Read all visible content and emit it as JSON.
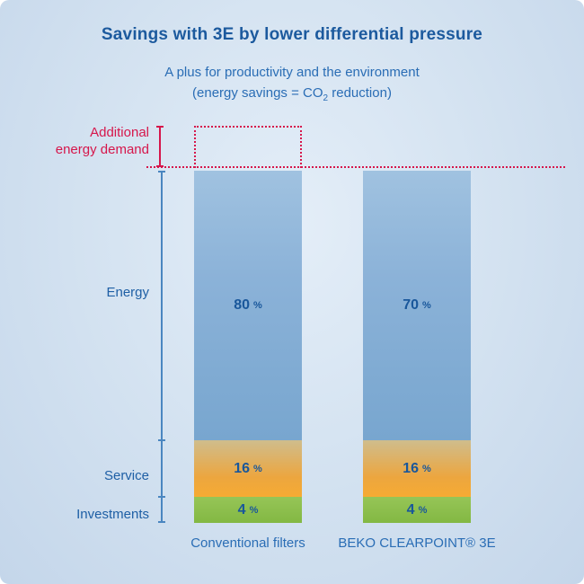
{
  "header": {
    "title": "Savings with 3E by lower differential pressure",
    "subtitle_line1": "A plus for productivity and the environment",
    "subtitle2_prefix": "(energy savings = CO",
    "subtitle2_sub": "2",
    "subtitle2_suffix": " reduction)"
  },
  "axis": {
    "additional_label_line1": "Additional",
    "additional_label_line2": "energy demand",
    "energy_label": "Energy",
    "service_label": "Service",
    "investments_label": "Investments"
  },
  "unit": "%",
  "chart_data": {
    "type": "bar",
    "stacked": true,
    "title": "Savings with 3E by lower differential pressure",
    "subtitle": "A plus for productivity and the environment (energy savings = CO2 reduction)",
    "categories": [
      "Conventional filters",
      "BEKO CLEARPOINT® 3E"
    ],
    "series": [
      {
        "name": "Energy",
        "values": [
          80,
          70
        ],
        "color": "#7fabd4"
      },
      {
        "name": "Service",
        "values": [
          16,
          16
        ],
        "color": "#f2a93a"
      },
      {
        "name": "Investments",
        "values": [
          4,
          4
        ],
        "color": "#90c152"
      }
    ],
    "annotation": {
      "label": "Additional energy demand",
      "value": 10,
      "applies_to": "Conventional filters",
      "style": "red-dotted-outline"
    },
    "unit": "%",
    "ylim": [
      0,
      110
    ],
    "grid": false,
    "legend_position": "left-axis-labels"
  },
  "colors": {
    "title_blue": "#1c5a9e",
    "subtitle_blue": "#2a6db5",
    "accent_red": "#d6164b",
    "axis_blue": "#4a86c0",
    "energy_fill": "#7fabd4",
    "service_fill": "#f2a93a",
    "investments_fill": "#90c152",
    "background": "#d2e1f0"
  }
}
